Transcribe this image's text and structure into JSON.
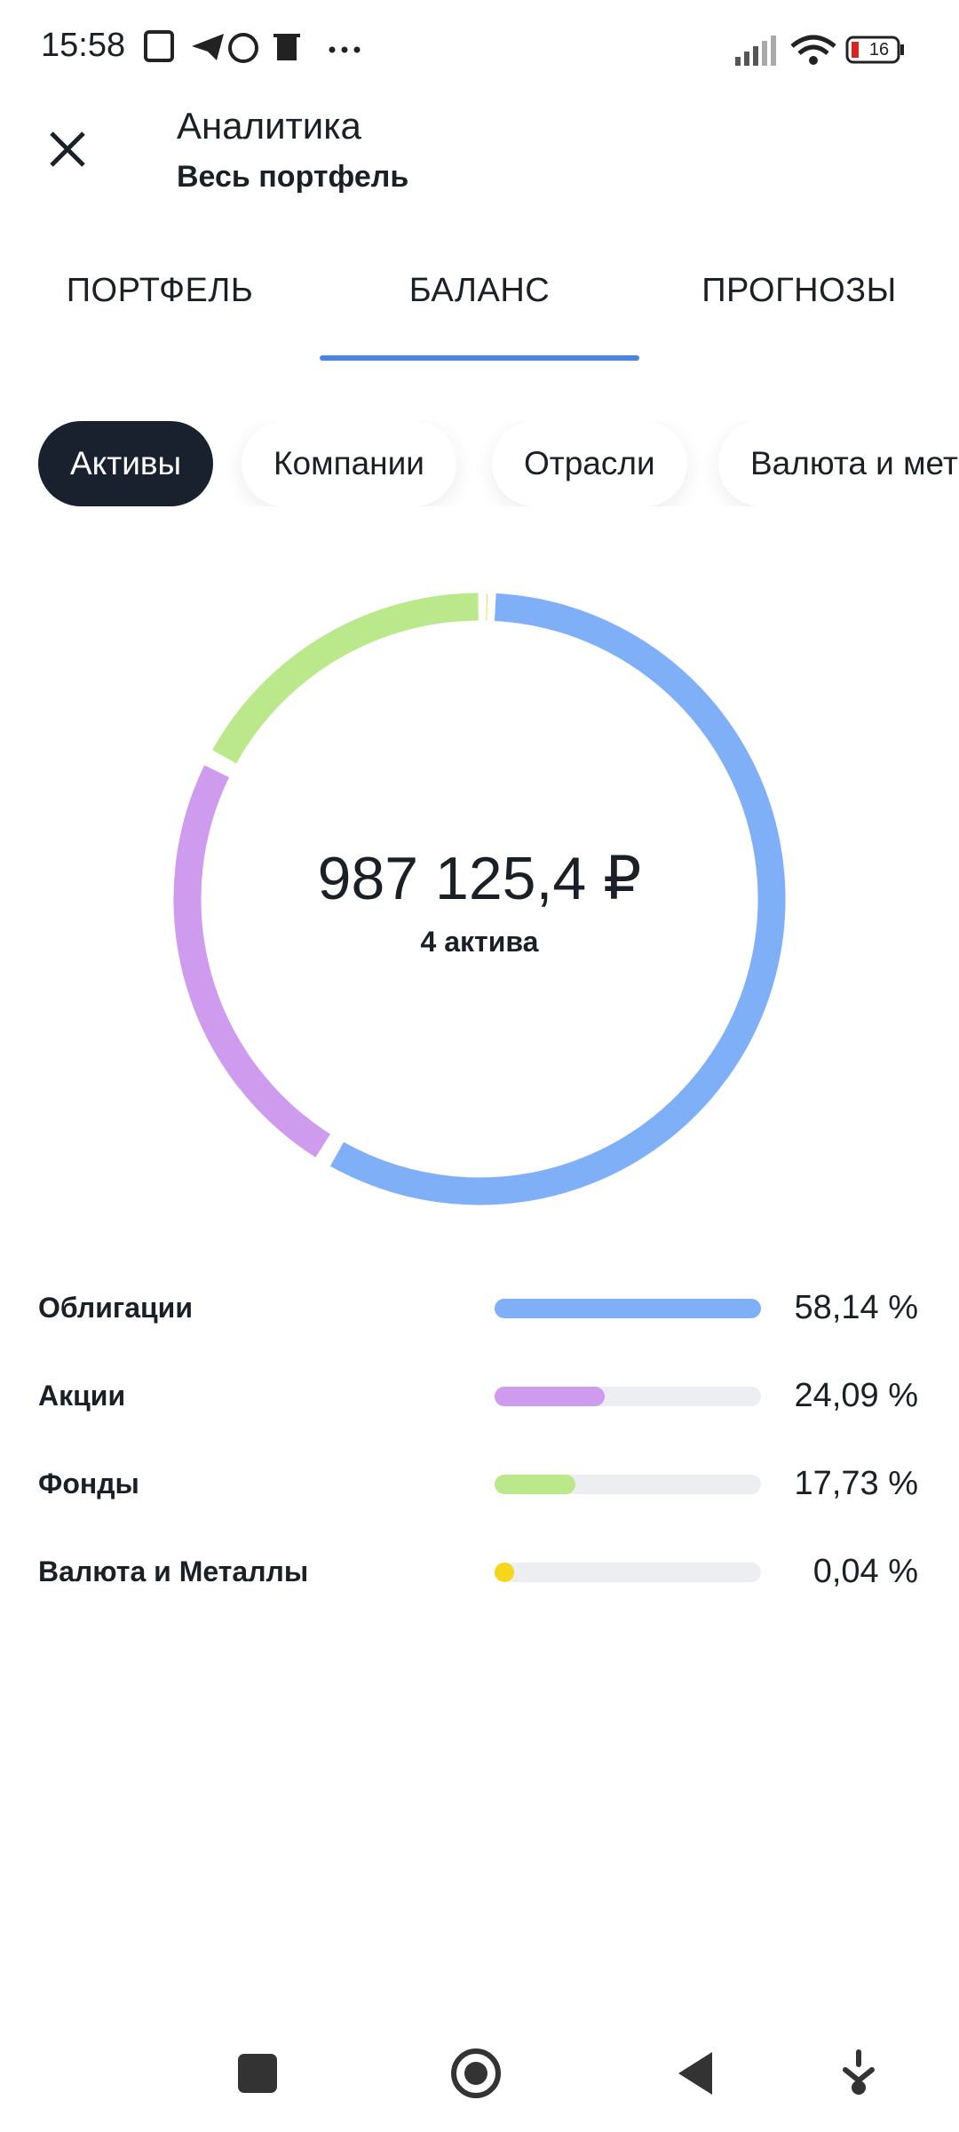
{
  "status_bar": {
    "time": "15:58",
    "battery": "16"
  },
  "header": {
    "title": "Аналитика",
    "subtitle": "Весь портфель"
  },
  "tabs": [
    "ПОРТФЕЛЬ",
    "БАЛАНС",
    "ПРОГНОЗЫ"
  ],
  "chips": [
    "Активы",
    "Компании",
    "Отрасли",
    "Валюта и металлы"
  ],
  "chart_data": {
    "type": "donut",
    "total": "987 125,4 ₽",
    "total_caption": "4 актива",
    "categories": [
      "Облигации",
      "Акции",
      "Фонды",
      "Валюта и Металлы"
    ],
    "values": [
      58.14,
      24.09,
      17.73,
      0.04
    ],
    "value_labels": [
      "58,14 %",
      "24,09 %",
      "17,73 %",
      "0,04 %"
    ],
    "colors": [
      "#7fb0f7",
      "#cf9bee",
      "#bbe88a",
      "#f7d51b"
    ]
  }
}
